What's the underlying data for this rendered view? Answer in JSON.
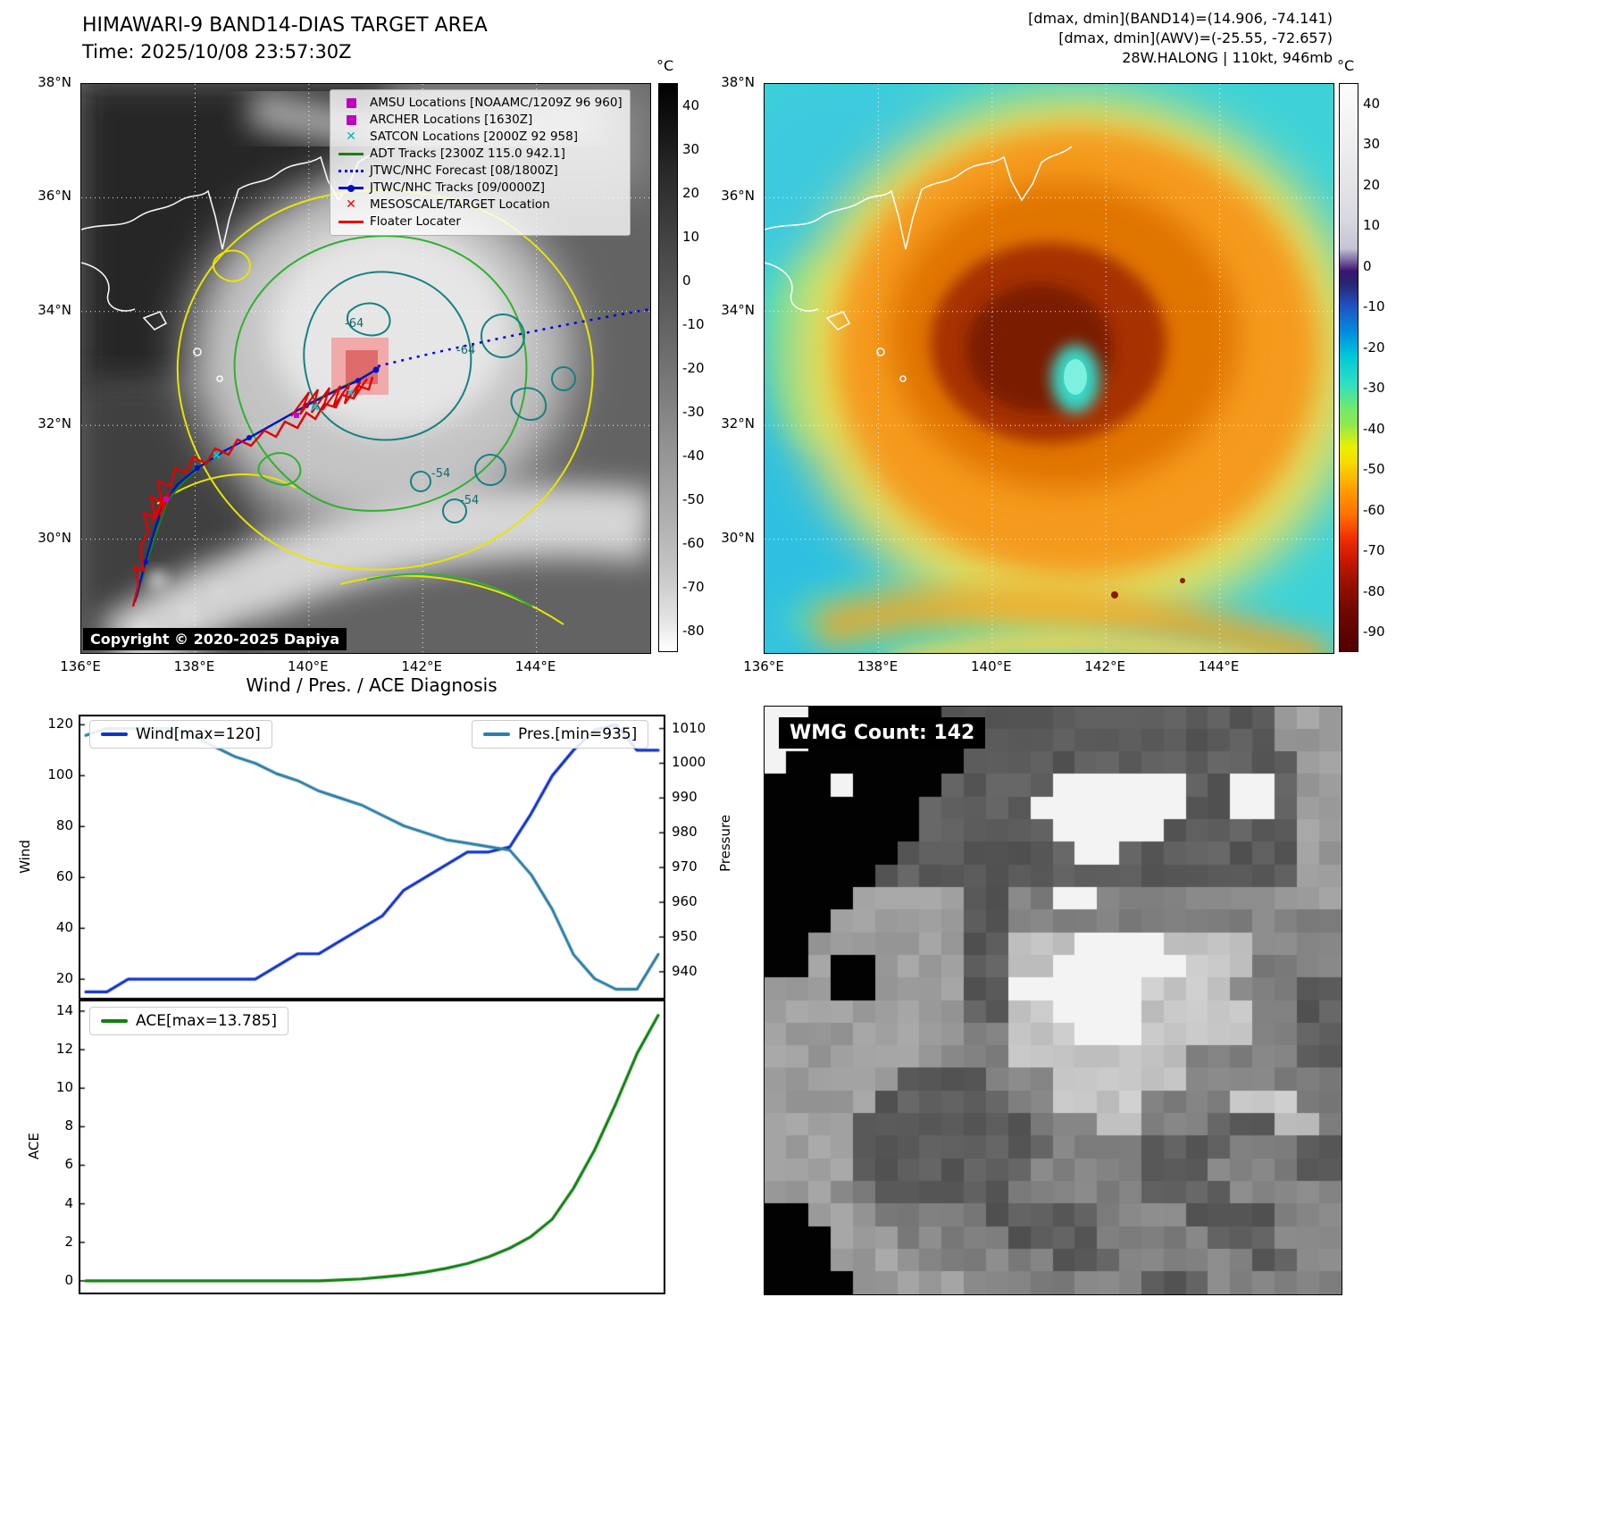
{
  "header": {
    "title": "HIMAWARI-9 BAND14-DIAS TARGET AREA",
    "time": "Time: 2025/10/08 23:57:30Z"
  },
  "info": {
    "line1": "[dmax, dmin](BAND14)=(14.906, -74.141)",
    "line2": "[dmax, dmin](AWV)=(-25.55, -72.657)",
    "line3": "28W.HALONG | 110kt, 946mb"
  },
  "maps": {
    "lon_ticks": [
      "136°E",
      "138°E",
      "140°E",
      "142°E",
      "144°E"
    ],
    "lat_ticks": [
      "38°N",
      "36°N",
      "34°N",
      "32°N",
      "30°N"
    ],
    "copyright": "Copyright © 2020-2025 Dapiya",
    "contour_labels": [
      "-54",
      "-64"
    ],
    "left_colorbar": {
      "unit": "°C",
      "vmax": 45,
      "vmin": -85,
      "ticks": [
        40,
        30,
        20,
        10,
        0,
        -10,
        -20,
        -30,
        -40,
        -50,
        -60,
        -70,
        -80
      ]
    },
    "right_colorbar": {
      "unit": "°C",
      "vmax": 45,
      "vmin": -95,
      "ticks": [
        40,
        30,
        20,
        10,
        0,
        -10,
        -20,
        -30,
        -40,
        -50,
        -60,
        -70,
        -80,
        -90
      ]
    },
    "legend": [
      {
        "marker": "square",
        "color": "#c000c0",
        "label": "AMSU Locations [NOAAMC/1209Z 96 960]"
      },
      {
        "marker": "square",
        "color": "#c000c0",
        "label": "ARCHER Locations [1630Z]"
      },
      {
        "marker": "x",
        "color": "#00b8b8",
        "label": "SATCON Locations [2000Z 92 958]"
      },
      {
        "marker": "line",
        "color": "#158015",
        "label": "ADT Tracks [2300Z 115.0 942.1]"
      },
      {
        "marker": "dotted",
        "color": "#0000dd",
        "label": "JTWC/NHC Forecast [08/1800Z]"
      },
      {
        "marker": "line-dot",
        "color": "#0010cc",
        "label": "JTWC/NHC Tracks [09/0000Z]"
      },
      {
        "marker": "x",
        "color": "#e30000",
        "label": "MESOSCALE/TARGET Location"
      },
      {
        "marker": "line",
        "color": "#e30000",
        "label": "Floater Locater"
      }
    ]
  },
  "charts": {
    "title": "Wind / Pres. / ACE Diagnosis"
  },
  "chart_data": [
    {
      "type": "line",
      "title": "Wind / Pres. / ACE Diagnosis",
      "x": [
        0,
        1,
        2,
        3,
        4,
        5,
        6,
        7,
        8,
        9,
        10,
        11,
        12,
        13,
        14,
        15,
        16,
        17,
        18,
        19,
        20,
        21,
        22,
        23,
        24,
        25,
        26,
        27
      ],
      "series": [
        {
          "name": "Wind[max=120]",
          "axis": "left",
          "color": "#1133cc",
          "values": [
            15,
            15,
            20,
            20,
            20,
            20,
            20,
            20,
            20,
            25,
            30,
            30,
            35,
            40,
            45,
            55,
            60,
            65,
            70,
            70,
            72,
            85,
            100,
            110,
            118,
            120,
            110,
            110
          ]
        },
        {
          "name": "Pres.[min=935]",
          "axis": "right",
          "color": "#2e7fa8",
          "values": [
            1008,
            1010,
            1010,
            1010,
            1010,
            1008,
            1005,
            1002,
            1000,
            997,
            995,
            992,
            990,
            988,
            985,
            982,
            980,
            978,
            977,
            976,
            975,
            968,
            958,
            945,
            938,
            935,
            935,
            945
          ]
        }
      ],
      "left_axis": {
        "label": "Wind",
        "ticks": [
          20,
          40,
          60,
          80,
          100,
          120
        ],
        "range": [
          12,
          124
        ]
      },
      "right_axis": {
        "label": "Pressure",
        "ticks": [
          940,
          950,
          960,
          970,
          980,
          990,
          1000,
          1010
        ],
        "range": [
          932,
          1014
        ]
      },
      "legend_position": "upper-left-and-upper-right",
      "grid": false
    },
    {
      "type": "line",
      "x": [
        0,
        1,
        2,
        3,
        4,
        5,
        6,
        7,
        8,
        9,
        10,
        11,
        12,
        13,
        14,
        15,
        16,
        17,
        18,
        19,
        20,
        21,
        22,
        23,
        24,
        25,
        26,
        27
      ],
      "series": [
        {
          "name": "ACE[max=13.785]",
          "axis": "left",
          "color": "#118011",
          "values": [
            0,
            0,
            0,
            0,
            0,
            0,
            0,
            0,
            0,
            0,
            0,
            0,
            0.05,
            0.1,
            0.2,
            0.3,
            0.45,
            0.65,
            0.9,
            1.25,
            1.7,
            2.3,
            3.2,
            4.8,
            6.8,
            9.2,
            11.8,
            13.785
          ]
        }
      ],
      "left_axis": {
        "label": "ACE",
        "ticks": [
          0,
          2,
          4,
          6,
          8,
          10,
          12,
          14
        ],
        "range": [
          -0.7,
          14.6
        ]
      },
      "legend_position": "upper-left",
      "grid": false
    }
  ],
  "wmg": {
    "label": "WMG Count: 142",
    "grid": [
      "WWKKKKKKDDDDDDDDDDDDDDDMMM",
      "WWKKKKKKKDDDDDDDDDDDDDDMMM",
      "WKKKKKKKKDDDDDDDDDDDDDDDMM",
      "KKKWKKKKDDDDDWWWWWWDDWWDMM",
      "KKKKKKKDDDDDWWWWWWWDDWWDMM",
      "KKKKKKKDDDDDDWWWWWDDDDDDMM",
      "KKKKKKDDDDDDDDWWDDDDDDDDMM",
      "KKKKKDDDDDDDDDDDDDDDDDDDMM",
      "KKKKMMMMMDDGGWWGGGGGGGGMMM",
      "KKKMMMMMMDDGGGGGGGGGGGGGGG",
      "KKMMMMMMMDDLLLWWWWLLLLGGGG",
      "KKMKKMMMMDDLLWWWWWWLLLGGGG",
      "MMMKKMMMMDDWWWWWWLLLLGGGDD",
      "MMMMMMMMMDDLLWWWWLLLLLGGDD",
      "MMMMMMMMMGGLLLWWWLLLLLGGDD",
      "MMMMMMMMGGGLLLLLLLLGGGGGDD",
      "MMMMMMDDDDGGGLLLLLLGGGGGGG",
      "MMMMMDDDDDDGGLLLLGGGGLLLGG",
      "MMMMDDDDDDDDGGGLLGGGDDDLLG",
      "MMMMDDDDDDDDDGGGGDDDDGGGDD",
      "MMMMDDDDDDDDGGGGGDDDGGGGDD",
      "MMMGGDDDDDDGGGGGGDDDDGGGGG",
      "KKMMMGGGGGDDDDDGGGGDDDDGGG",
      "KKKMMMGGGGGDDDDGGGGGDDDGGG",
      "KKKMMMMGGGGGGDDDGGGGGGDDGG",
      "KKKKMMMMMGGGGGGGGDDDGGGGGG"
    ]
  }
}
